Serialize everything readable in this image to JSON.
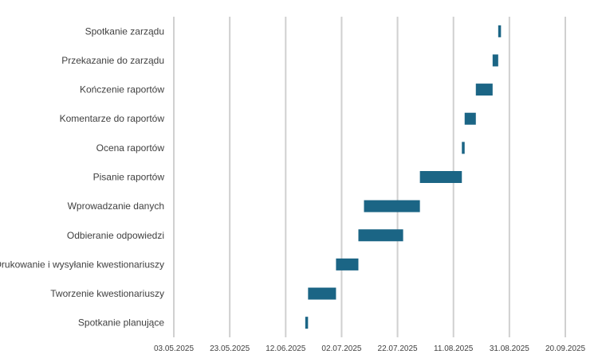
{
  "chart_data": {
    "type": "bar",
    "orientation": "horizontal",
    "stacked": true,
    "title": "",
    "xlabel": "",
    "ylabel": "",
    "bar_color": "#1b6585",
    "grid": true,
    "legend": "none",
    "xlim": [
      "2025-05-03",
      "2025-09-20"
    ],
    "x_ticks": [
      "03.05.2025",
      "23.05.2025",
      "12.06.2025",
      "02.07.2025",
      "22.07.2025",
      "11.08.2025",
      "31.08.2025",
      "20.09.2025"
    ],
    "categories": [
      "Spotkanie planujące",
      "Tworzenie kwestionariuszy",
      "Drukowanie i wysyłanie kwestionariuszy",
      "Odbieranie odpowiedzi",
      "Wprowadzanie danych",
      "Pisanie raportów",
      "Ocena raportów",
      "Komentarze do raportów",
      "Kończenie raportów",
      "Przekazanie do zarządu",
      "Spotkanie zarządu"
    ],
    "tasks": [
      {
        "name": "Spotkanie planujące",
        "start": "2025-06-19",
        "end": "2025-06-20"
      },
      {
        "name": "Tworzenie kwestionariuszy",
        "start": "2025-06-20",
        "end": "2025-06-30"
      },
      {
        "name": "Drukowanie i wysyłanie kwestionariuszy",
        "start": "2025-06-30",
        "end": "2025-07-08"
      },
      {
        "name": "Odbieranie odpowiedzi",
        "start": "2025-07-08",
        "end": "2025-07-24"
      },
      {
        "name": "Wprowadzanie danych",
        "start": "2025-07-10",
        "end": "2025-07-30"
      },
      {
        "name": "Pisanie raportów",
        "start": "2025-07-30",
        "end": "2025-08-14"
      },
      {
        "name": "Ocena raportów",
        "start": "2025-08-14",
        "end": "2025-08-15"
      },
      {
        "name": "Komentarze do raportów",
        "start": "2025-08-15",
        "end": "2025-08-19"
      },
      {
        "name": "Kończenie raportów",
        "start": "2025-08-19",
        "end": "2025-08-25"
      },
      {
        "name": "Przekazanie do zarządu",
        "start": "2025-08-25",
        "end": "2025-08-27"
      },
      {
        "name": "Spotkanie zarządu",
        "start": "2025-08-27",
        "end": "2025-08-28"
      }
    ]
  }
}
